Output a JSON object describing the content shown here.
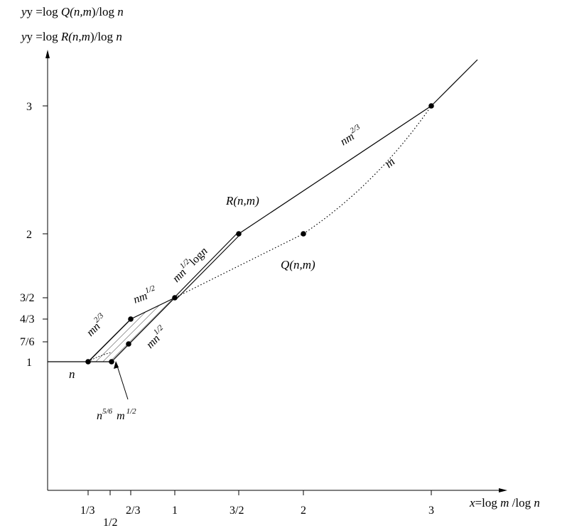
{
  "axes": {
    "y_label_line1": {
      "prefix": "y =log ",
      "func": "Q(",
      "arg": "n,m",
      "close": ")/log  ",
      "var": "n"
    },
    "y_label_line2": {
      "prefix": "y =log ",
      "func": "R",
      "arg": "(n,m",
      "close": ")/log  ",
      "var": "n"
    },
    "x_label": {
      "prefix": "x",
      "mid": "=log  ",
      "var1": "m",
      "slash": " /log  ",
      "var2": "n"
    },
    "y_ticks": [
      "3",
      "2",
      "3/2",
      "4/3",
      "7/6",
      "1"
    ],
    "x_ticks": [
      "1/3",
      "1/2",
      "2/3",
      "1",
      "3/2",
      "2",
      "3"
    ]
  },
  "curve_labels": {
    "R": "R(n,m)",
    "Q": "Q(n,m)",
    "n": "n",
    "m": "m",
    "nm23": {
      "base": "nm",
      "exp": "2/3"
    },
    "mn23": {
      "base": "mn",
      "exp": "2/3"
    },
    "nm12": {
      "base": "nm",
      "exp": "1/2"
    },
    "mn12": {
      "base": "mn",
      "exp": "1/2"
    },
    "mn12logn": {
      "base": "mn",
      "exp": "1/2",
      "tail": "log",
      "var": "n"
    },
    "n56m12": {
      "b1": "n",
      "e1": "5/6",
      "b2": "m",
      "e2": "1/2"
    }
  }
}
